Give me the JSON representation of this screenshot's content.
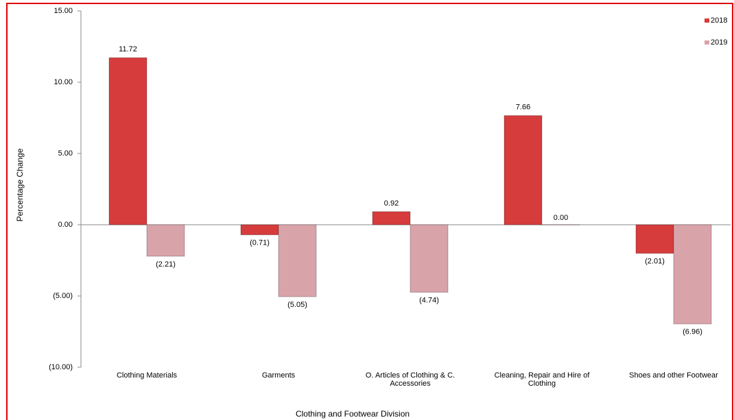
{
  "chart_data": {
    "type": "bar",
    "x_label": "Clothing and Footwear Division",
    "y_label": "Percentage Change",
    "categories": [
      "Clothing Materials",
      "Garments",
      "O. Articles of Clothing & C. Accessories",
      "Cleaning, Repair and Hire of Clothing",
      "Shoes and other Footwear"
    ],
    "series": [
      {
        "name": "2018",
        "color": "#d63c3c",
        "values": [
          11.72,
          -0.71,
          0.92,
          7.66,
          -2.01
        ],
        "value_labels": [
          "11.72",
          "(0.71)",
          "0.92",
          "7.66",
          "(2.01)"
        ]
      },
      {
        "name": "2019",
        "color": "#d9a3aa",
        "values": [
          -2.21,
          -5.05,
          -4.74,
          0,
          -6.96
        ],
        "value_labels": [
          "(2.21)",
          "(5.05)",
          "(4.74)",
          "0.00",
          "(6.96)"
        ]
      }
    ],
    "ylim": [
      -10,
      15
    ],
    "yticks": [
      {
        "value": -10,
        "label": "(10.00)"
      },
      {
        "value": -5,
        "label": "(5.00)"
      },
      {
        "value": 0,
        "label": "0.00"
      },
      {
        "value": 5,
        "label": "5.00"
      },
      {
        "value": 10,
        "label": "10.00"
      },
      {
        "value": 15,
        "label": "15.00"
      }
    ],
    "legend": "top-right"
  }
}
